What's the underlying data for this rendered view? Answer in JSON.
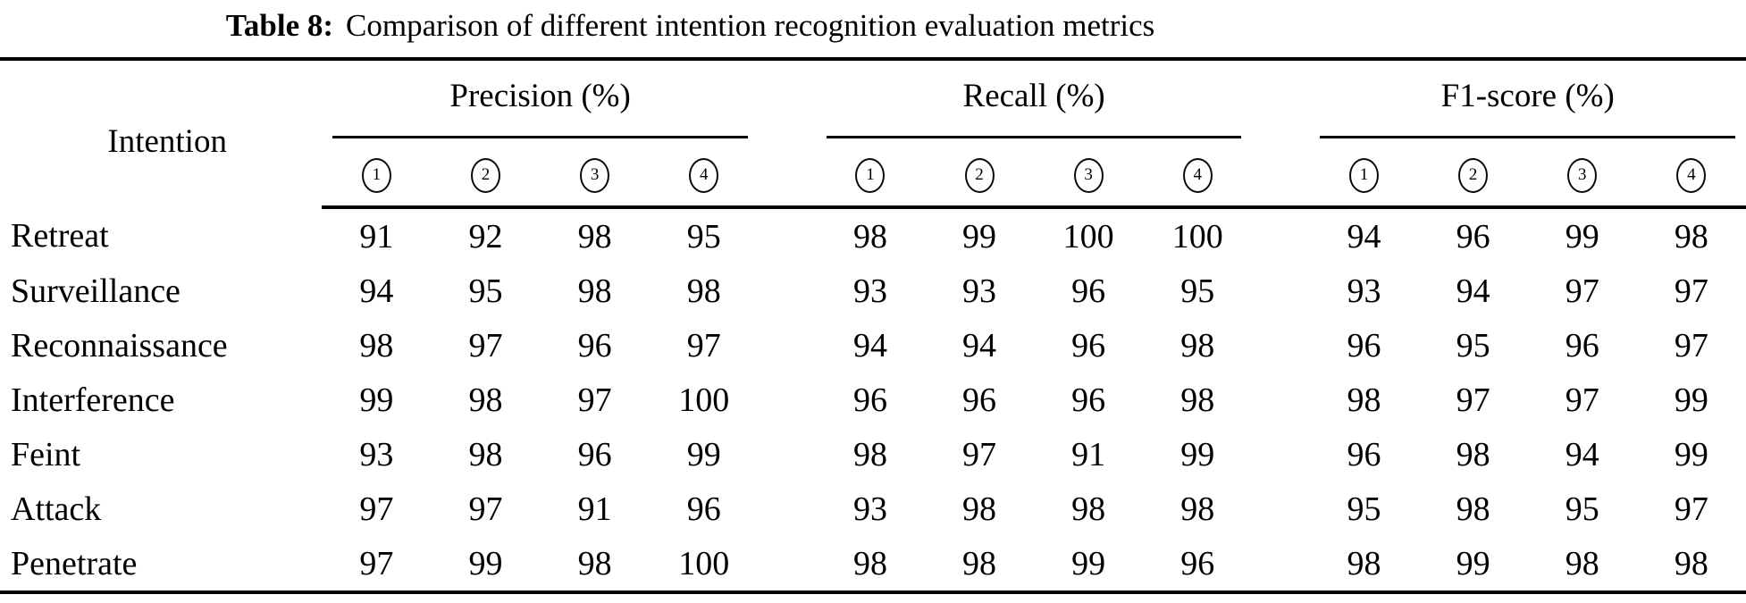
{
  "caption": {
    "prefix": "Table 8:",
    "text": "Comparison of different intention recognition evaluation metrics"
  },
  "colors": {
    "background": "#ffffff",
    "text": "#000000",
    "rules": "#000000"
  },
  "table": {
    "intention_header": "Intention",
    "group_headers": [
      "Precision (%)",
      "Recall (%)",
      "F1-score (%)"
    ],
    "method_labels": [
      "1",
      "2",
      "3",
      "4"
    ],
    "rows": [
      {
        "intention": "Retreat",
        "precision": [
          "91",
          "92",
          "98",
          "95"
        ],
        "recall": [
          "98",
          "99",
          "100",
          "100"
        ],
        "f1": [
          "94",
          "96",
          "99",
          "98"
        ]
      },
      {
        "intention": "Surveillance",
        "precision": [
          "94",
          "95",
          "98",
          "98"
        ],
        "recall": [
          "93",
          "93",
          "96",
          "95"
        ],
        "f1": [
          "93",
          "94",
          "97",
          "97"
        ]
      },
      {
        "intention": "Reconnaissance",
        "precision": [
          "98",
          "97",
          "96",
          "97"
        ],
        "recall": [
          "94",
          "94",
          "96",
          "98"
        ],
        "f1": [
          "96",
          "95",
          "96",
          "97"
        ]
      },
      {
        "intention": "Interference",
        "precision": [
          "99",
          "98",
          "97",
          "100"
        ],
        "recall": [
          "96",
          "96",
          "96",
          "98"
        ],
        "f1": [
          "98",
          "97",
          "97",
          "99"
        ]
      },
      {
        "intention": "Feint",
        "precision": [
          "93",
          "98",
          "96",
          "99"
        ],
        "recall": [
          "98",
          "97",
          "91",
          "99"
        ],
        "f1": [
          "96",
          "98",
          "94",
          "99"
        ]
      },
      {
        "intention": "Attack",
        "precision": [
          "97",
          "97",
          "91",
          "96"
        ],
        "recall": [
          "93",
          "98",
          "98",
          "98"
        ],
        "f1": [
          "95",
          "98",
          "95",
          "97"
        ]
      },
      {
        "intention": "Penetrate",
        "precision": [
          "97",
          "99",
          "98",
          "100"
        ],
        "recall": [
          "98",
          "98",
          "99",
          "96"
        ],
        "f1": [
          "98",
          "99",
          "98",
          "98"
        ]
      }
    ]
  }
}
